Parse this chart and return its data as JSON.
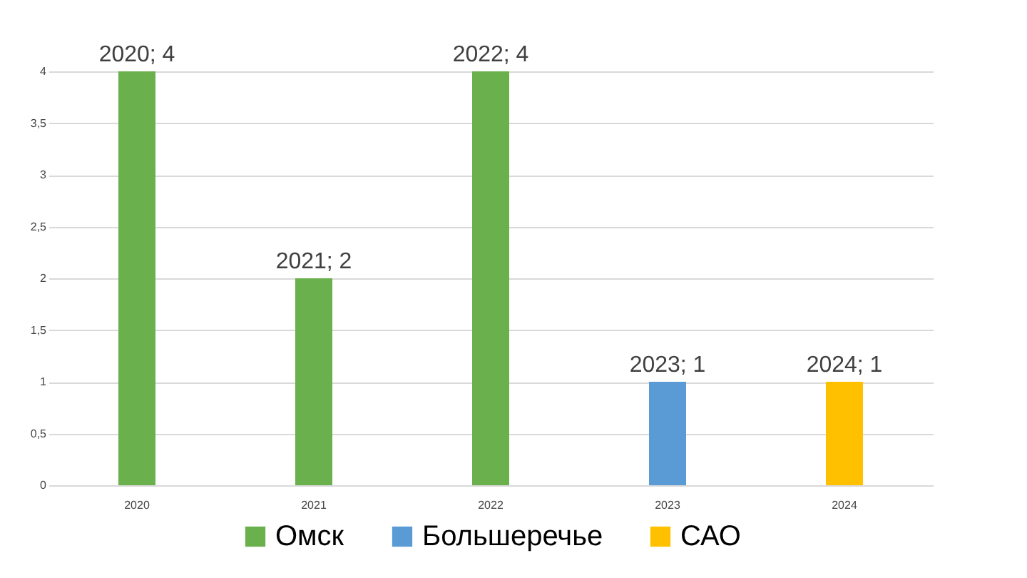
{
  "chart_data": {
    "type": "bar",
    "categories": [
      "2020",
      "2021",
      "2022",
      "2023",
      "2024"
    ],
    "series": [
      {
        "name": "Омск",
        "color": "#6ab04c",
        "values": [
          4,
          2,
          4,
          null,
          null
        ],
        "value_labels": [
          "2020; 4",
          "2021; 2",
          "2022; 4",
          null,
          null
        ]
      },
      {
        "name": "Большеречье",
        "color": "#5b9bd5",
        "values": [
          null,
          null,
          null,
          1,
          null
        ],
        "value_labels": [
          null,
          null,
          null,
          "2023; 1",
          null
        ]
      },
      {
        "name": "САО",
        "color": "#ffc000",
        "values": [
          null,
          null,
          null,
          null,
          1
        ],
        "value_labels": [
          null,
          null,
          null,
          null,
          "2024; 1"
        ]
      }
    ],
    "ylim": [
      0,
      4
    ],
    "yticks": [
      0,
      {
        "value": 0.5,
        "label": "0,5"
      },
      1,
      {
        "value": 1.5,
        "label": "1,5"
      },
      2,
      {
        "value": 2.5,
        "label": "2,5"
      },
      3,
      {
        "value": 3.5,
        "label": "3,5"
      },
      4
    ],
    "grid": "y",
    "legend": "bottom"
  }
}
